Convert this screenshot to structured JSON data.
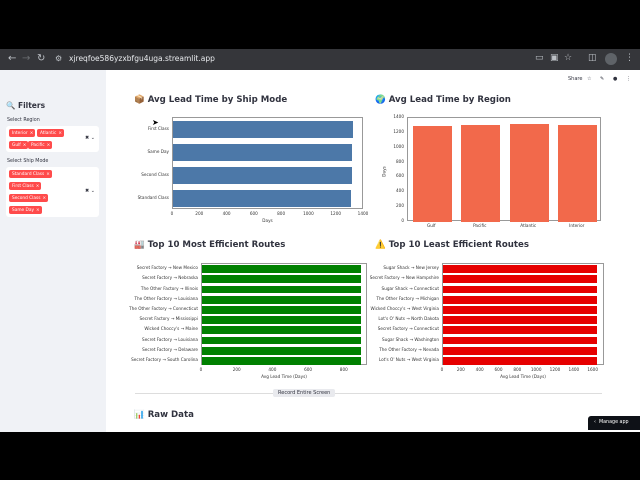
{
  "browser": {
    "url": "xjreqfoe586yzxbfgu4uga.streamlit.app"
  },
  "app": {
    "share": "Share",
    "record_button": "Record Entire Screen",
    "manage_app": "Manage app"
  },
  "sidebar": {
    "title": "🔍 Filters",
    "region_label": "Select Region",
    "regions": [
      "Interior",
      "Atlantic",
      "Gulf",
      "Pacific"
    ],
    "shipmode_label": "Select Ship Mode",
    "shipmodes": [
      "Standard Class",
      "First Class",
      "Second Class",
      "Same Day"
    ]
  },
  "headings": {
    "ship_mode": "📦 Avg Lead Time by Ship Mode",
    "region": "🌍 Avg Lead Time by Region",
    "top": "🏭 Top 10 Most Efficient Routes",
    "least": "⚠️ Top 10 Least Efficient Routes",
    "raw": "📊 Raw Data"
  },
  "chart_data": [
    {
      "type": "bar",
      "orientation": "horizontal",
      "categories": [
        "First Class",
        "Same Day",
        "Second Class",
        "Standard Class"
      ],
      "values": [
        1320,
        1315,
        1310,
        1305
      ],
      "xlabel": "Days",
      "xticks": [
        0,
        200,
        400,
        600,
        800,
        1000,
        1200,
        1400
      ],
      "color": "#4c78a8"
    },
    {
      "type": "bar",
      "categories": [
        "Gulf",
        "Pacific",
        "Atlantic",
        "Interior"
      ],
      "values": [
        1295,
        1310,
        1318,
        1312
      ],
      "ylabel": "Days",
      "yticks": [
        0,
        200,
        400,
        600,
        800,
        1000,
        1200,
        1400
      ],
      "color": "#f2694b"
    },
    {
      "type": "bar",
      "orientation": "horizontal",
      "categories": [
        "Secret Factory → New Mexico",
        "Secret Factory → Nebraska",
        "The Other Factory → Illinois",
        "The Other Factory → Louisiana",
        "The Other Factory → Connecticut",
        "Secret Factory → Mississippi",
        "Wicked Choccy's → Maine",
        "Secret Factory → Louisiana",
        "Secret Factory → Delaware",
        "Secret Factory → South Carolina"
      ],
      "values": [
        893,
        893,
        893,
        893,
        893,
        893,
        893,
        893,
        893,
        893
      ],
      "xlabel": "Avg Lead Time (Days)",
      "xticks": [
        0,
        200,
        400,
        600,
        800
      ],
      "color": "#008000"
    },
    {
      "type": "bar",
      "orientation": "horizontal",
      "categories": [
        "Sugar Shack → New Jersey",
        "Secret Factory → New Hampshire",
        "Sugar Shack → Connecticut",
        "The Other Factory → Michigan",
        "Wicked Choccy's → West Virginia",
        "Lot's O' Nuts → North Dakota",
        "Secret Factory → Connecticut",
        "Sugar Shack → Washington",
        "The Other Factory → Nevada",
        "Lot's O' Nuts → West Virginia"
      ],
      "values": [
        1640,
        1640,
        1640,
        1640,
        1640,
        1640,
        1640,
        1640,
        1640,
        1640
      ],
      "xlabel": "Avg Lead Time (Days)",
      "xticks": [
        0,
        200,
        400,
        600,
        800,
        1000,
        1200,
        1400,
        1600
      ],
      "color": "#e60000"
    }
  ]
}
